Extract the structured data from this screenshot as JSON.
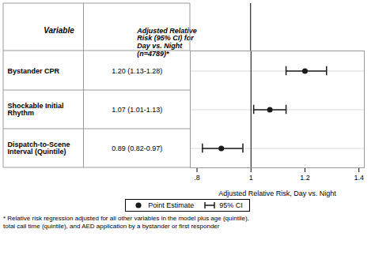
{
  "chart_data": {
    "type": "forest",
    "xlabel": "Adjusted Relative Risk, Day vs. Night",
    "column_headers": [
      "Variable",
      "Adjusted Relative\nRisk (95% CI) for\nDay vs. Night\n(n=4789)*"
    ],
    "categories": [
      "Bystander CPR",
      "Shockable Initial\nRhythm",
      "Dispatch-to-Scene\nInterval (Quintile)"
    ],
    "series": [
      {
        "name": "Point Estimate",
        "color": "#1a1a1a",
        "marker": "circle",
        "values": [
          1.2,
          1.07,
          0.89
        ]
      },
      {
        "name": "95% CI",
        "color": "#1a1a1a",
        "type": "errorbar",
        "ci_low": [
          1.13,
          1.01,
          0.82
        ],
        "ci_high": [
          1.28,
          1.13,
          0.97
        ]
      }
    ],
    "ci_labels": [
      "1.20 (1.13-1.28)",
      "1.07 (1.01-1.13)",
      "0.89 (0.82-0.97)"
    ],
    "reference_line": 1.0,
    "xlim": [
      0.775,
      1.42
    ],
    "xticks": [
      {
        "value": 0.8,
        "label": ".8"
      },
      1.0,
      1.2,
      1.4
    ],
    "grid": true,
    "legend": "bottom",
    "footnote": "* Relative risk regression adjusted for all other variables in the model plus age (quintile),\ntotal call time (quintile), and AED application by a bystander or first responder"
  }
}
